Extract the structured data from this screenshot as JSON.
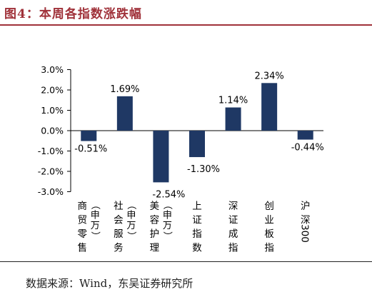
{
  "figure": {
    "title": "图4：本周各指数涨跌幅",
    "source": "数据来源：Wind，东吴证券研究所"
  },
  "chart_data": {
    "type": "bar",
    "categories": [
      [
        "商",
        "贸",
        "零",
        "售"
      ],
      [
        "社",
        "会",
        "服",
        "务"
      ],
      [
        "美",
        "容",
        "护",
        "理"
      ],
      [
        "上",
        "证",
        "指",
        "数"
      ],
      [
        "深",
        "证",
        "成",
        "指"
      ],
      [
        "创",
        "业",
        "板",
        "指"
      ],
      [
        "沪",
        "深",
        "300"
      ]
    ],
    "category_suffix": [
      [
        "（",
        "申",
        "万",
        "）"
      ],
      [
        "（",
        "申",
        "万",
        "）"
      ],
      [
        "（",
        "申",
        "万",
        "）"
      ],
      [],
      [],
      [],
      []
    ],
    "values": [
      -0.51,
      1.69,
      -2.54,
      -1.3,
      1.14,
      2.34,
      -0.44
    ],
    "value_labels": [
      "-0.51%",
      "1.69%",
      "-2.54%",
      "-1.30%",
      "1.14%",
      "2.34%",
      "-0.44%"
    ],
    "yticks": [
      3.0,
      2.0,
      1.0,
      0.0,
      -1.0,
      -2.0,
      -3.0
    ],
    "ytick_labels": [
      "3.0%",
      "2.0%",
      "1.0%",
      "0.0%",
      "-1.0%",
      "-2.0%",
      "-3.0%"
    ],
    "ylim": [
      -3.0,
      3.0
    ],
    "bar_color": "#1f3864",
    "grid": false,
    "legend": "none"
  }
}
